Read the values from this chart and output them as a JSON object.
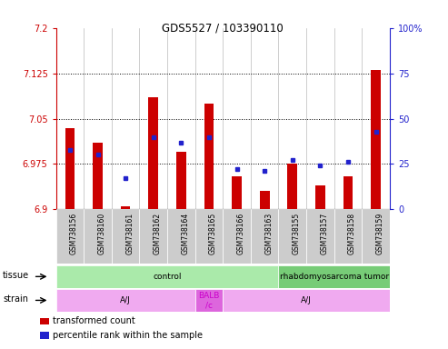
{
  "title": "GDS5527 / 103390110",
  "samples": [
    "GSM738156",
    "GSM738160",
    "GSM738161",
    "GSM738162",
    "GSM738164",
    "GSM738165",
    "GSM738166",
    "GSM738163",
    "GSM738155",
    "GSM738157",
    "GSM738158",
    "GSM738159"
  ],
  "red_values": [
    7.035,
    7.01,
    6.905,
    7.085,
    6.995,
    7.075,
    6.955,
    6.93,
    6.975,
    6.94,
    6.955,
    7.13
  ],
  "blue_values": [
    33,
    30,
    17,
    40,
    37,
    40,
    22,
    21,
    27,
    24,
    26,
    43
  ],
  "y_min": 6.9,
  "y_max": 7.2,
  "y_ticks": [
    6.9,
    6.975,
    7.05,
    7.125,
    7.2
  ],
  "y_ticks_labels": [
    "6.9",
    "6.975",
    "7.05",
    "7.125",
    "7.2"
  ],
  "y2_ticks": [
    0,
    25,
    50,
    75,
    100
  ],
  "y2_ticks_labels": [
    "0",
    "25",
    "50",
    "75",
    "100%"
  ],
  "dotted_lines": [
    6.975,
    7.05,
    7.125
  ],
  "bar_color": "#cc0000",
  "blue_color": "#2222cc",
  "tissue_blocks": [
    {
      "label": "control",
      "start": 0,
      "end": 8,
      "color": "#aaeaaa"
    },
    {
      "label": "rhabdomyosarcoma tumor",
      "start": 8,
      "end": 12,
      "color": "#77cc77"
    }
  ],
  "strain_blocks": [
    {
      "label": "A/J",
      "start": 0,
      "end": 5,
      "color": "#f0aaf0"
    },
    {
      "label": "BALB\n/c",
      "start": 5,
      "end": 6,
      "color": "#dd66dd"
    },
    {
      "label": "A/J",
      "start": 6,
      "end": 12,
      "color": "#f0aaf0"
    }
  ],
  "legend_items": [
    {
      "color": "#cc0000",
      "label": "transformed count"
    },
    {
      "color": "#2222cc",
      "label": "percentile rank within the sample"
    }
  ],
  "left_axis_color": "#cc0000",
  "right_axis_color": "#2222cc",
  "tissue_row_label": "tissue",
  "strain_row_label": "strain",
  "bar_width": 0.35,
  "xtick_box_color": "#cccccc"
}
